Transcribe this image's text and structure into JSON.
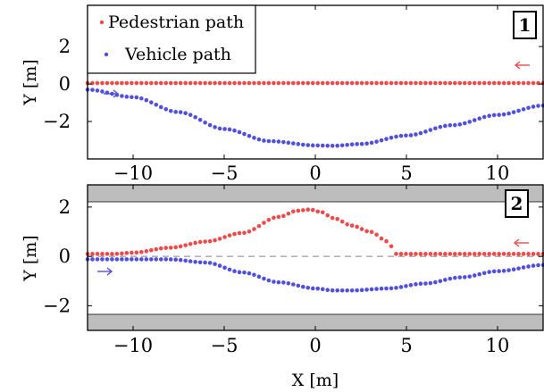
{
  "chart_data": [
    {
      "type": "scatter",
      "panel_label": "1",
      "ylabel": "Y [m]",
      "xlim": [
        -12.5,
        12.5
      ],
      "ylim": [
        -4.0,
        4.2
      ],
      "x_ticks": [
        -10,
        -5,
        0,
        5,
        10
      ],
      "x_tick_labels": [
        "−10",
        "−5",
        "0",
        "5",
        "10"
      ],
      "y_ticks": [
        2,
        0,
        -2
      ],
      "y_tick_labels": [
        "2",
        "0",
        "−2"
      ],
      "legend": {
        "placement": "top-left",
        "entries": [
          "Pedestrian path",
          "Vehicle path"
        ]
      },
      "series": [
        {
          "name": "Pedestrian path",
          "color": "#ee4a4a",
          "direction": "leftward",
          "x": [
            -12.5,
            -10,
            -7.5,
            -5,
            -2.5,
            0,
            2.5,
            5,
            7.5,
            10,
            12.5
          ],
          "y": [
            0.05,
            0.05,
            0.05,
            0.05,
            0.05,
            0.05,
            0.05,
            0.05,
            0.05,
            0.05,
            0.05
          ]
        },
        {
          "name": "Vehicle path",
          "color": "#5050dd",
          "direction": "rightward",
          "x": [
            -12.5,
            -10,
            -7.5,
            -5,
            -2.5,
            0,
            1,
            2.5,
            5,
            7.5,
            10,
            12.5
          ],
          "y": [
            -0.3,
            -0.7,
            -1.5,
            -2.4,
            -3.05,
            -3.28,
            -3.3,
            -3.2,
            -2.75,
            -2.2,
            -1.65,
            -1.15
          ]
        }
      ]
    },
    {
      "type": "scatter",
      "panel_label": "2",
      "ylabel": "Y [m]",
      "xlabel": "X [m]",
      "xlim": [
        -12.5,
        12.5
      ],
      "ylim": [
        -3.0,
        2.9
      ],
      "x_ticks": [
        -10,
        -5,
        0,
        5,
        10
      ],
      "x_tick_labels": [
        "−10",
        "−5",
        "0",
        "5",
        "10"
      ],
      "y_ticks": [
        2,
        0,
        -2
      ],
      "y_tick_labels": [
        "2",
        "0",
        "−2"
      ],
      "reference_line_y": 0,
      "series": [
        {
          "name": "Pedestrian path",
          "color": "#ee4a4a",
          "direction": "leftward",
          "x": [
            -12.5,
            -11,
            -10,
            -8,
            -6,
            -4,
            -2,
            -1,
            -0.3,
            0.3,
            1,
            2,
            3,
            4,
            4.4,
            5,
            7,
            10,
            12.5
          ],
          "y": [
            0.1,
            0.1,
            0.15,
            0.35,
            0.6,
            0.95,
            1.6,
            1.85,
            1.9,
            1.8,
            1.55,
            1.25,
            1.0,
            0.6,
            0.1,
            0.1,
            0.1,
            0.1,
            0.1
          ]
        },
        {
          "name": "Vehicle path",
          "color": "#5050dd",
          "direction": "rightward",
          "x": [
            -12.5,
            -10,
            -8,
            -6,
            -4,
            -2,
            0,
            1,
            2,
            4,
            6,
            8,
            10,
            12.5
          ],
          "y": [
            -0.12,
            -0.12,
            -0.12,
            -0.25,
            -0.65,
            -1.05,
            -1.3,
            -1.38,
            -1.38,
            -1.3,
            -1.1,
            -0.85,
            -0.6,
            -0.35
          ]
        }
      ]
    }
  ]
}
